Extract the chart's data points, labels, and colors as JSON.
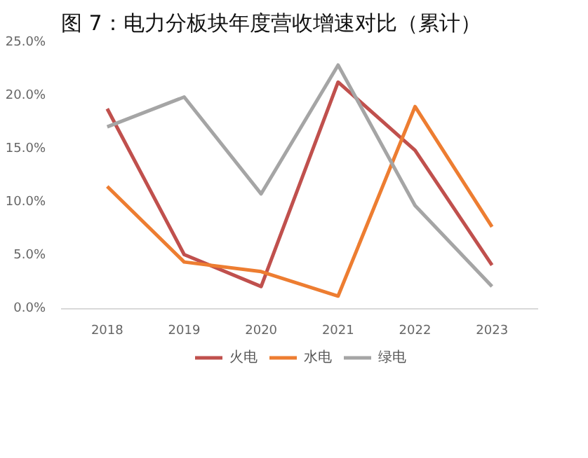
{
  "chart_data": {
    "type": "line",
    "title": "图 7：电力分板块年度营收增速对比（累计）",
    "categories": [
      "2018",
      "2019",
      "2020",
      "2021",
      "2022",
      "2023"
    ],
    "series": [
      {
        "name": "火电",
        "color": "#c0504d",
        "values": [
          18.8,
          5.1,
          2.1,
          21.3,
          14.9,
          4.1
        ]
      },
      {
        "name": "水电",
        "color": "#ed7d31",
        "values": [
          11.5,
          4.4,
          3.5,
          1.2,
          19.0,
          7.7
        ]
      },
      {
        "name": "绿电",
        "color": "#a5a5a5",
        "values": [
          17.1,
          19.9,
          10.8,
          22.9,
          9.7,
          2.1
        ]
      }
    ],
    "ylim": [
      0,
      25
    ],
    "yticks": [
      {
        "value": 0,
        "label": "0.0%"
      },
      {
        "value": 5,
        "label": "5.0%"
      },
      {
        "value": 10,
        "label": "10.0%"
      },
      {
        "value": 15,
        "label": "15.0%"
      },
      {
        "value": 20,
        "label": "20.0%"
      },
      {
        "value": 25,
        "label": "25.0%"
      }
    ],
    "grid": false,
    "legend": "bottom",
    "marker": "none",
    "line_style": "solid"
  }
}
